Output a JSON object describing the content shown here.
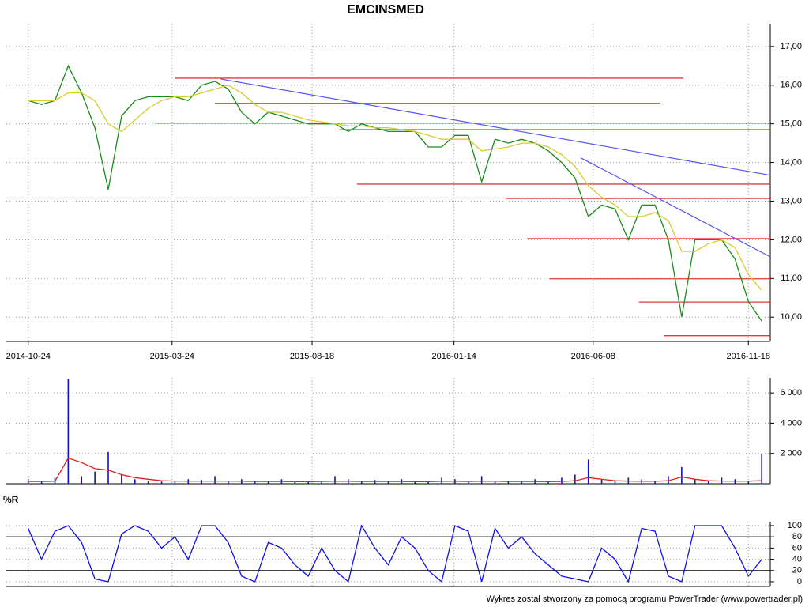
{
  "chart_data": [
    {
      "type": "line",
      "title": "EMCINSMED",
      "x": [
        "2014-10-24",
        "2014-11-07",
        "2014-11-21",
        "2014-12-05",
        "2014-12-19",
        "2015-01-02",
        "2015-01-16",
        "2015-01-30",
        "2015-02-13",
        "2015-02-27",
        "2015-03-13",
        "2015-03-27",
        "2015-04-10",
        "2015-04-24",
        "2015-05-08",
        "2015-05-22",
        "2015-06-05",
        "2015-06-19",
        "2015-07-03",
        "2015-07-17",
        "2015-07-31",
        "2015-08-14",
        "2015-08-28",
        "2015-09-11",
        "2015-09-25",
        "2015-10-09",
        "2015-10-23",
        "2015-11-06",
        "2015-11-20",
        "2015-12-04",
        "2015-12-18",
        "2016-01-01",
        "2016-01-15",
        "2016-01-29",
        "2016-02-12",
        "2016-02-26",
        "2016-03-11",
        "2016-03-25",
        "2016-04-08",
        "2016-04-22",
        "2016-05-06",
        "2016-05-20",
        "2016-06-03",
        "2016-06-17",
        "2016-07-01",
        "2016-07-15",
        "2016-07-29",
        "2016-08-12",
        "2016-08-26",
        "2016-09-09",
        "2016-09-23",
        "2016-10-07",
        "2016-10-21",
        "2016-11-04",
        "2016-11-18",
        "2016-12-02"
      ],
      "series": [
        {
          "color": "#1a8c1a",
          "values": [
            15.6,
            15.5,
            15.6,
            16.5,
            15.8,
            14.9,
            13.3,
            15.2,
            15.6,
            15.7,
            15.7,
            15.7,
            15.6,
            16.0,
            16.1,
            15.9,
            15.3,
            15.0,
            15.3,
            15.2,
            15.1,
            15.0,
            15.0,
            15.0,
            14.8,
            15.0,
            14.9,
            14.8,
            14.8,
            14.8,
            14.4,
            14.4,
            14.7,
            14.7,
            13.5,
            14.6,
            14.5,
            14.6,
            14.5,
            14.3,
            14.0,
            13.6,
            12.6,
            12.9,
            12.8,
            12.0,
            12.9,
            12.9,
            12.0,
            10.0,
            12.0,
            12.0,
            12.0,
            11.5,
            10.4,
            9.9
          ]
        },
        {
          "color": "#d8cc30",
          "values": [
            15.6,
            15.6,
            15.6,
            15.8,
            15.8,
            15.6,
            15.0,
            14.8,
            15.1,
            15.4,
            15.6,
            15.7,
            15.7,
            15.8,
            15.9,
            16.0,
            15.8,
            15.5,
            15.3,
            15.3,
            15.2,
            15.1,
            15.05,
            15.0,
            14.95,
            14.95,
            14.9,
            14.9,
            14.85,
            14.8,
            14.7,
            14.6,
            14.6,
            14.6,
            14.3,
            14.35,
            14.4,
            14.5,
            14.5,
            14.4,
            14.2,
            13.9,
            13.4,
            13.1,
            12.9,
            12.6,
            12.6,
            12.7,
            12.5,
            11.7,
            11.7,
            11.9,
            12.0,
            11.8,
            11.1,
            10.7
          ]
        }
      ],
      "xlim": [
        "2014-10-01",
        "2016-12-11"
      ],
      "xticks": [
        "2014-10-24",
        "2015-03-24",
        "2015-08-18",
        "2016-01-14",
        "2016-06-08",
        "2016-11-18"
      ],
      "ylim": [
        9.37,
        17.59
      ],
      "yticks": [
        {
          "value": 10,
          "label": "10,00"
        },
        {
          "value": 11,
          "label": "11,00"
        },
        {
          "value": 12,
          "label": "12,00"
        },
        {
          "value": 13,
          "label": "13,00"
        },
        {
          "value": 14,
          "label": "14,00"
        },
        {
          "value": 15,
          "label": "15,00"
        },
        {
          "value": 16,
          "label": "16,00"
        },
        {
          "value": 17,
          "label": "17,00"
        }
      ],
      "grid": true,
      "hline_color": "#e83a3a",
      "hlines": [
        {
          "from": "2015-03-27",
          "to": "2016-09-11",
          "value": 16.18
        },
        {
          "from": "2015-05-08",
          "to": "2016-08-17",
          "value": 15.53
        },
        {
          "from": "2015-03-07",
          "to": "2016-12-11",
          "value": 15.02
        },
        {
          "from": "2015-09-16",
          "to": "2016-12-11",
          "value": 14.85
        },
        {
          "from": "2015-10-04",
          "to": "2016-12-11",
          "value": 13.44
        },
        {
          "from": "2016-03-08",
          "to": "2016-12-11",
          "value": 13.07
        },
        {
          "from": "2016-03-31",
          "to": "2016-12-11",
          "value": 12.03
        },
        {
          "from": "2016-04-23",
          "to": "2016-12-11",
          "value": 10.99
        },
        {
          "from": "2016-07-26",
          "to": "2016-12-11",
          "value": 10.39
        },
        {
          "from": "2016-08-21",
          "to": "2016-12-11",
          "value": 9.52
        }
      ],
      "trend_color": "#5555ee",
      "trendlines": [
        {
          "from": [
            "2015-05-14",
            16.16
          ],
          "to": [
            "2016-12-11",
            13.67
          ]
        },
        {
          "from": [
            "2016-05-26",
            14.12
          ],
          "to": [
            "2016-12-11",
            11.56
          ]
        }
      ]
    },
    {
      "type": "bar",
      "ylim": [
        0,
        7000
      ],
      "yticks": [
        {
          "value": 2000,
          "label": "2 000"
        },
        {
          "value": 4000,
          "label": "4 000"
        },
        {
          "value": 6000,
          "label": "6 000"
        }
      ],
      "grid": true,
      "series": [
        {
          "type": "bar",
          "color": "#1010cc",
          "values": [
            300,
            200,
            400,
            6900,
            500,
            800,
            2100,
            600,
            300,
            200,
            150,
            200,
            300,
            250,
            500,
            200,
            300,
            200,
            150,
            300,
            200,
            150,
            200,
            500,
            300,
            150,
            250,
            200,
            300,
            150,
            200,
            400,
            300,
            200,
            500,
            200,
            150,
            200,
            300,
            200,
            400,
            600,
            1600,
            300,
            200,
            400,
            300,
            200,
            500,
            1100,
            300,
            200,
            400,
            300,
            200,
            2000
          ]
        },
        {
          "type": "line",
          "color": "#e02020",
          "values": [
            150,
            150,
            160,
            1700,
            1400,
            1000,
            900,
            600,
            400,
            300,
            200,
            180,
            170,
            170,
            180,
            170,
            160,
            150,
            150,
            150,
            140,
            140,
            150,
            170,
            160,
            150,
            150,
            150,
            150,
            140,
            140,
            160,
            160,
            150,
            170,
            160,
            150,
            150,
            150,
            140,
            150,
            200,
            400,
            300,
            200,
            170,
            160,
            160,
            200,
            450,
            300,
            200,
            180,
            170,
            170,
            200
          ]
        }
      ]
    },
    {
      "type": "line",
      "label": "%R",
      "ylim": [
        -8.5,
        107
      ],
      "yticks": [
        0,
        20,
        40,
        60,
        80,
        100
      ],
      "levels": [
        20,
        80
      ],
      "grid": true,
      "series": [
        {
          "color": "#1010ee",
          "values": [
            95,
            40,
            90,
            100,
            70,
            5,
            0,
            85,
            100,
            90,
            60,
            80,
            40,
            100,
            100,
            70,
            10,
            0,
            70,
            60,
            30,
            10,
            60,
            20,
            0,
            100,
            60,
            30,
            80,
            60,
            20,
            0,
            100,
            90,
            0,
            95,
            60,
            80,
            50,
            30,
            10,
            5,
            0,
            60,
            40,
            0,
            95,
            90,
            10,
            0,
            100,
            100,
            100,
            60,
            10,
            40
          ]
        }
      ]
    }
  ],
  "footer": "Wykres został stworzony za pomocą programu PowerTrader (www.powertrader.pl)"
}
